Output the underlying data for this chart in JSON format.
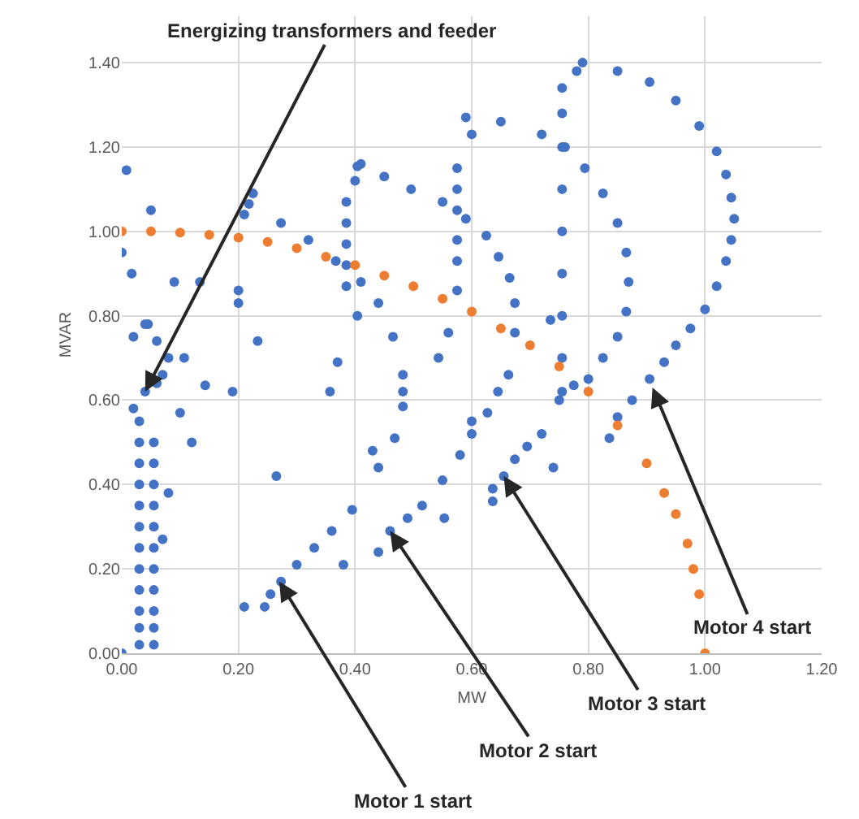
{
  "chart_data": {
    "type": "scatter",
    "xlabel": "MW",
    "ylabel": "MVAR",
    "xlim": [
      0,
      1.2
    ],
    "ylim": [
      0,
      1.51
    ],
    "xticks": [
      {
        "value": 0,
        "label": "0.00"
      },
      {
        "value": 0.2,
        "label": "0.20"
      },
      {
        "value": 0.4,
        "label": "0.40"
      },
      {
        "value": 0.6,
        "label": "0.60"
      },
      {
        "value": 0.8,
        "label": "0.80"
      },
      {
        "value": 1.0,
        "label": "1.00"
      },
      {
        "value": 1.2,
        "label": "1.20"
      }
    ],
    "yticks": [
      {
        "value": 0,
        "label": "0.00"
      },
      {
        "value": 0.2,
        "label": "0.20"
      },
      {
        "value": 0.4,
        "label": "0.40"
      },
      {
        "value": 0.6,
        "label": "0.60"
      },
      {
        "value": 0.8,
        "label": "0.80"
      },
      {
        "value": 1.0,
        "label": "1.00"
      },
      {
        "value": 1.2,
        "label": "1.20"
      },
      {
        "value": 1.4,
        "label": "1.40"
      }
    ],
    "grid": true,
    "marker": "circle",
    "series": [
      {
        "color": "#4472c4",
        "x": [
          0.0,
          0.03,
          0.03,
          0.03,
          0.03,
          0.03,
          0.03,
          0.03,
          0.03,
          0.03,
          0.03,
          0.03,
          0.03,
          0.055,
          0.055,
          0.055,
          0.055,
          0.055,
          0.055,
          0.055,
          0.055,
          0.055,
          0.055,
          0.055,
          0.02,
          0.04,
          0.06,
          0.045,
          0.008,
          0.0,
          0.017,
          0.05,
          0.02,
          0.04,
          0.06,
          0.08,
          0.07,
          0.107,
          0.143,
          0.19,
          0.233,
          0.134,
          0.09,
          0.12,
          0.1,
          0.08,
          0.07,
          0.265,
          0.21,
          0.357,
          0.37,
          0.404,
          0.43,
          0.553,
          0.56,
          0.543,
          0.6,
          0.74,
          0.735,
          0.38,
          0.2,
          0.2,
          0.218,
          0.21,
          0.225,
          0.273,
          0.32,
          0.367,
          0.41,
          0.44,
          0.465,
          0.482,
          0.482,
          0.482,
          0.468,
          0.44,
          0.395,
          0.36,
          0.33,
          0.3,
          0.273,
          0.255,
          0.245,
          0.385,
          0.385,
          0.385,
          0.385,
          0.385,
          0.404,
          0.4,
          0.41,
          0.45,
          0.496,
          0.55,
          0.59,
          0.625,
          0.646,
          0.665,
          0.674,
          0.674,
          0.663,
          0.645,
          0.627,
          0.6,
          0.58,
          0.55,
          0.515,
          0.49,
          0.46,
          0.44,
          0.575,
          0.575,
          0.575,
          0.575,
          0.575,
          0.575,
          0.59,
          0.6,
          0.65,
          0.72,
          0.76,
          0.794,
          0.825,
          0.85,
          0.865,
          0.869,
          0.865,
          0.85,
          0.825,
          0.8,
          0.775,
          0.75,
          0.72,
          0.695,
          0.674,
          0.655,
          0.636,
          0.636,
          0.755,
          0.755,
          0.755,
          0.755,
          0.755,
          0.755,
          0.755,
          0.755,
          0.755,
          0.79,
          0.78,
          0.85,
          0.905,
          0.95,
          0.99,
          1.02,
          1.036,
          1.045,
          1.05,
          1.045,
          1.036,
          1.02,
          1.0,
          0.975,
          0.95,
          0.93,
          0.905,
          0.875,
          0.85,
          0.836
        ],
        "values": [
          0.0,
          0.02,
          0.06,
          0.1,
          0.15,
          0.2,
          0.25,
          0.3,
          0.35,
          0.4,
          0.45,
          0.5,
          0.55,
          0.02,
          0.06,
          0.1,
          0.15,
          0.2,
          0.25,
          0.3,
          0.35,
          0.4,
          0.45,
          0.5,
          0.58,
          0.62,
          0.64,
          0.78,
          1.145,
          0.95,
          0.9,
          1.05,
          0.75,
          0.78,
          0.74,
          0.7,
          0.66,
          0.7,
          0.635,
          0.62,
          0.74,
          0.88,
          0.88,
          0.5,
          0.57,
          0.38,
          0.27,
          0.42,
          0.11,
          0.62,
          0.69,
          0.8,
          0.48,
          0.32,
          0.76,
          0.7,
          0.55,
          0.44,
          0.79,
          0.21,
          0.83,
          0.86,
          1.065,
          1.04,
          1.09,
          1.02,
          0.98,
          0.93,
          0.88,
          0.83,
          0.75,
          0.66,
          0.62,
          0.585,
          0.51,
          0.44,
          0.34,
          0.29,
          0.25,
          0.21,
          0.17,
          0.14,
          0.11,
          0.87,
          0.92,
          0.97,
          1.02,
          1.07,
          1.154,
          1.12,
          1.16,
          1.13,
          1.1,
          1.07,
          1.03,
          0.99,
          0.94,
          0.89,
          0.83,
          0.76,
          0.66,
          0.62,
          0.57,
          0.52,
          0.47,
          0.41,
          0.35,
          0.32,
          0.29,
          0.24,
          0.86,
          0.93,
          0.98,
          1.05,
          1.1,
          1.15,
          1.27,
          1.23,
          1.26,
          1.23,
          1.2,
          1.15,
          1.09,
          1.02,
          0.95,
          0.88,
          0.81,
          0.75,
          0.7,
          0.65,
          0.635,
          0.6,
          0.52,
          0.49,
          0.46,
          0.42,
          0.39,
          0.36,
          0.62,
          0.7,
          0.8,
          0.9,
          1.0,
          1.1,
          1.2,
          1.28,
          1.34,
          1.4,
          1.38,
          1.38,
          1.354,
          1.31,
          1.25,
          1.19,
          1.135,
          1.08,
          1.03,
          0.98,
          0.93,
          0.87,
          0.815,
          0.77,
          0.73,
          0.69,
          0.65,
          0.6,
          0.56,
          0.51
        ]
      },
      {
        "color": "#ed7d31",
        "x": [
          0.0,
          0.05,
          0.1,
          0.15,
          0.2,
          0.25,
          0.3,
          0.35,
          0.4,
          0.45,
          0.5,
          0.55,
          0.6,
          0.65,
          0.7,
          0.75,
          0.8,
          0.85,
          0.9,
          0.93,
          0.95,
          0.97,
          0.98,
          0.99,
          1.0
        ],
        "values": [
          1.0,
          1.0,
          0.997,
          0.992,
          0.985,
          0.975,
          0.96,
          0.94,
          0.92,
          0.895,
          0.87,
          0.84,
          0.81,
          0.77,
          0.73,
          0.68,
          0.62,
          0.54,
          0.45,
          0.38,
          0.33,
          0.26,
          0.2,
          0.14,
          0.0
        ]
      }
    ],
    "annotations": [
      {
        "text": "Energizing transformers and feeder",
        "x": 0.04,
        "y": 0.62
      },
      {
        "text": "Motor 1 start",
        "x": 0.27,
        "y": 0.17
      },
      {
        "text": "Motor 2 start",
        "x": 0.46,
        "y": 0.29
      },
      {
        "text": "Motor 3 start",
        "x": 0.655,
        "y": 0.42
      },
      {
        "text": "Motor 4 start",
        "x": 0.91,
        "y": 0.63
      }
    ]
  }
}
